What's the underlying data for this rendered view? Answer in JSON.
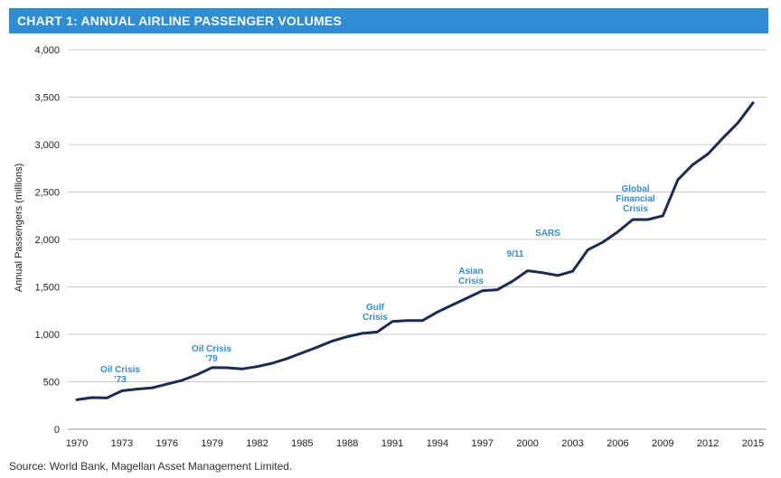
{
  "title": "CHART 1: ANNUAL AIRLINE PASSENGER VOLUMES",
  "source": "Source: World Bank, Magellan Asset Management Limited.",
  "colors": {
    "header": "#2f8ed3",
    "line": "#1c2b55",
    "annotation": "#2f8ed3",
    "grid": "#c8c8c8"
  },
  "chart_data": {
    "type": "line",
    "ylabel": "Annual Passengers (millions)",
    "xlabel": "",
    "ylim": [
      0,
      4000
    ],
    "xlim": [
      1970,
      2015
    ],
    "grid": "horizontal",
    "yticks": [
      0,
      500,
      1000,
      1500,
      2000,
      2500,
      3000,
      3500,
      4000
    ],
    "ytick_labels": [
      "0",
      "500",
      "1,000",
      "1,500",
      "2,000",
      "2,500",
      "3,000",
      "3,500",
      "4,000"
    ],
    "xticks": [
      1970,
      1973,
      1976,
      1979,
      1982,
      1985,
      1988,
      1991,
      1994,
      1997,
      2000,
      2003,
      2006,
      2009,
      2012,
      2015
    ],
    "xtick_labels": [
      "1970",
      "1973",
      "1976",
      "1979",
      "1982",
      "1985",
      "1988",
      "1991",
      "1994",
      "1997",
      "2000",
      "2003",
      "2006",
      "2009",
      "2012",
      "2015"
    ],
    "series": [
      {
        "x": [
          1970,
          1971,
          1972,
          1973,
          1974,
          1975,
          1976,
          1977,
          1978,
          1979,
          1980,
          1981,
          1982,
          1983,
          1984,
          1985,
          1986,
          1987,
          1988,
          1989,
          1990,
          1991,
          1992,
          1993,
          1994,
          1995,
          1996,
          1997,
          1998,
          1999,
          2000,
          2001,
          2002,
          2003,
          2004,
          2005,
          2006,
          2007,
          2008,
          2009,
          2010,
          2011,
          2012,
          2013,
          2014,
          2015
        ],
        "values": [
          310,
          333,
          330,
          405,
          423,
          435,
          475,
          515,
          575,
          650,
          648,
          635,
          660,
          695,
          745,
          805,
          865,
          930,
          975,
          1010,
          1025,
          1135,
          1145,
          1145,
          1235,
          1310,
          1385,
          1460,
          1470,
          1560,
          1670,
          1650,
          1620,
          1665,
          1890,
          1970,
          2080,
          2210,
          2210,
          2250,
          2630,
          2790,
          2900,
          3070,
          3230,
          3440
        ]
      }
    ],
    "annotations": [
      {
        "lines": [
          "Oil Crisis",
          "'73"
        ]
      },
      {
        "lines": [
          "Oil Crisis",
          "'79"
        ]
      },
      {
        "lines": [
          "Gulf",
          "Crisis"
        ]
      },
      {
        "lines": [
          "Asian",
          "Crisis"
        ]
      },
      {
        "lines": [
          "9/11"
        ]
      },
      {
        "lines": [
          "SARS"
        ]
      },
      {
        "lines": [
          "Global",
          "Financial",
          "Crisis"
        ]
      }
    ]
  }
}
